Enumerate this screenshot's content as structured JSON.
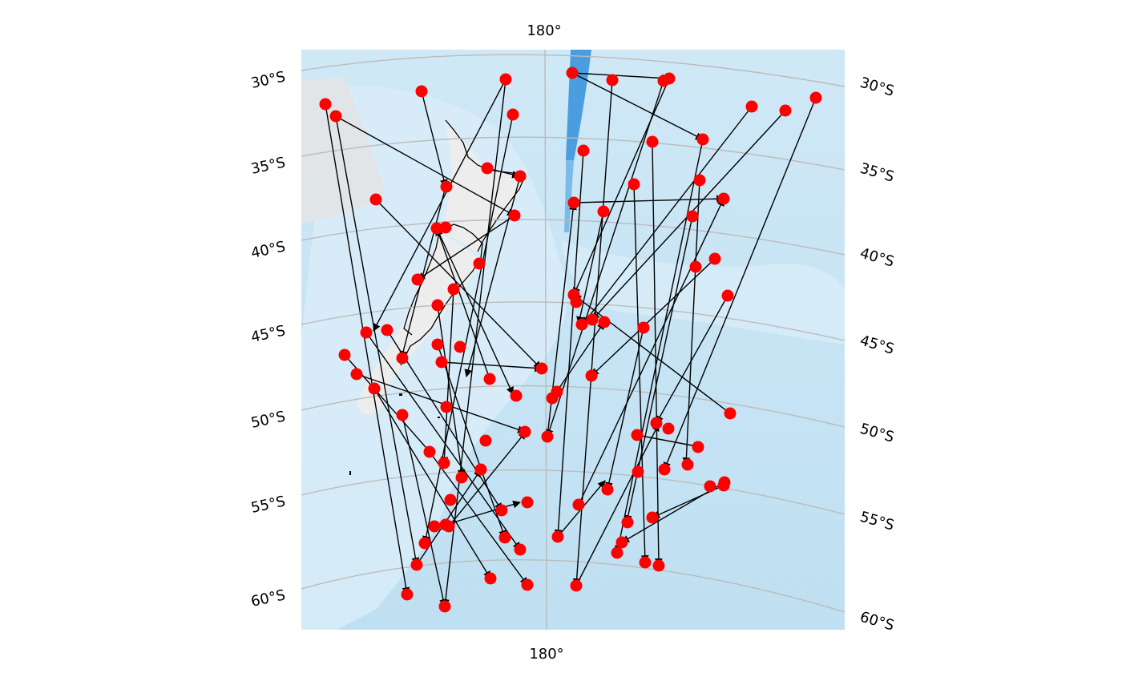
{
  "map": {
    "top_label": "180°",
    "bottom_label": "180°",
    "lat_labels_left": [
      "30°S",
      "35°S",
      "40°S",
      "45°S",
      "50°S",
      "55°S",
      "60°S"
    ],
    "lat_labels_right": [
      "30°S",
      "35°S",
      "40°S",
      "45°S",
      "50°S",
      "55°S",
      "60°S"
    ],
    "colors": {
      "points": "#ff0000",
      "tracks": "#000000",
      "gridlines": "#bbbbbb",
      "ocean": "#c9e6f7",
      "deep_trench": "#4a9ee0",
      "land": "#eeeeee",
      "coastline": "#000000"
    },
    "point_marker": "red-dot",
    "track_marker": "black-arrow"
  }
}
